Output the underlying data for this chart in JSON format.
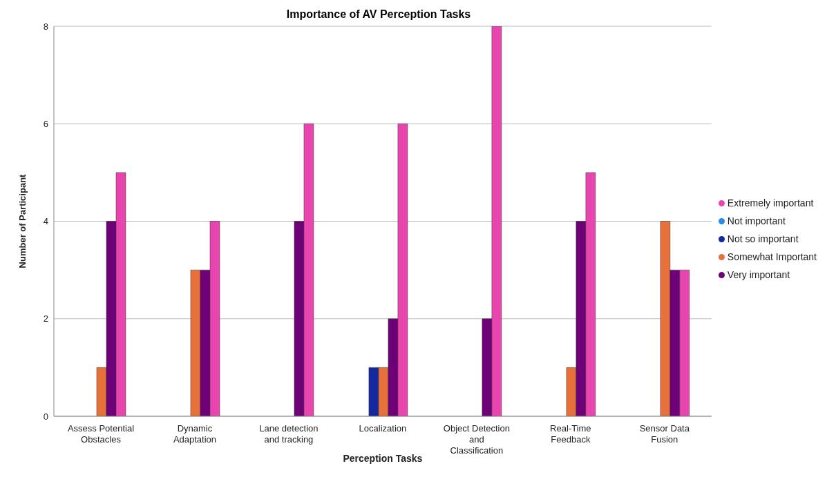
{
  "chart_data": {
    "type": "bar",
    "title": "Importance of AV Perception Tasks",
    "xlabel": "Perception Tasks",
    "ylabel": "Number of Participant",
    "categories": [
      "Assess Potential Obstacles",
      "Dynamic Adaptation",
      "Lane detection and tracking",
      "Localization",
      "Object Detection and Classification",
      "Real-Time Feedback",
      "Sensor Data Fusion"
    ],
    "series": [
      {
        "name": "Not important",
        "color": "#2a8be8",
        "values": [
          0,
          0,
          0,
          0,
          0,
          0,
          0
        ]
      },
      {
        "name": "Not so important",
        "color": "#1428a0",
        "values": [
          0,
          0,
          0,
          1,
          0,
          0,
          0
        ]
      },
      {
        "name": "Somewhat Important",
        "color": "#e8703a",
        "values": [
          1,
          3,
          0,
          1,
          0,
          1,
          4
        ]
      },
      {
        "name": "Very important",
        "color": "#6e0078",
        "values": [
          4,
          3,
          4,
          2,
          2,
          4,
          3
        ]
      },
      {
        "name": "Extremely important",
        "color": "#e845b0",
        "values": [
          5,
          4,
          6,
          6,
          8,
          5,
          3
        ]
      }
    ],
    "ylim": [
      0,
      8
    ],
    "yticks": [
      0,
      2,
      4,
      6,
      8
    ],
    "grid": "y",
    "legend": "right"
  }
}
